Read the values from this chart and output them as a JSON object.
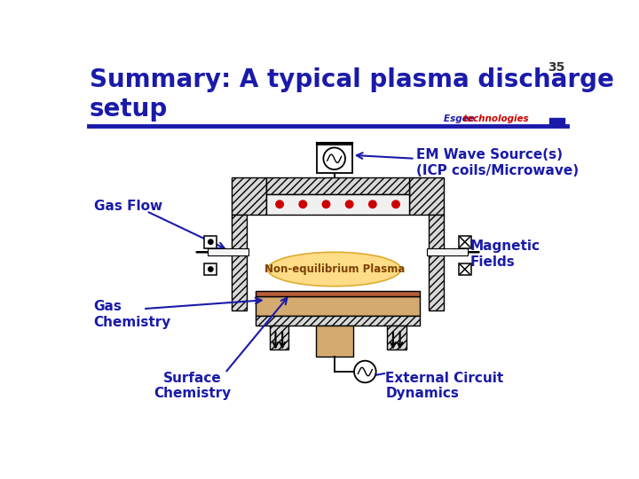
{
  "title_line1": "Summary: A typical plasma discharge",
  "title_line2": "setup",
  "slide_number": "35",
  "bg": "#ffffff",
  "title_color": "#1a1aaa",
  "title_fs": 20,
  "header_line_color": "#1a1aaa",
  "brand1": "Esgee ",
  "brand2": "technologies",
  "brand_color1": "#1a1aaa",
  "brand_color2": "#cc0000",
  "lc": "#1a1aaa",
  "label_fs": 11,
  "dot_color": "#cc0000",
  "plasma_text": "Non-equilibrium Plasma",
  "em_label": "EM Wave Source(s)\n(ICP coils/Microwave)",
  "gas_flow_label": "Gas Flow",
  "mag_label": "Magnetic\nFields",
  "gas_chem_label": "Gas\nChemistry",
  "surf_chem_label": "Surface\nChemistry",
  "ext_circ_label": "External Circuit\nDynamics"
}
